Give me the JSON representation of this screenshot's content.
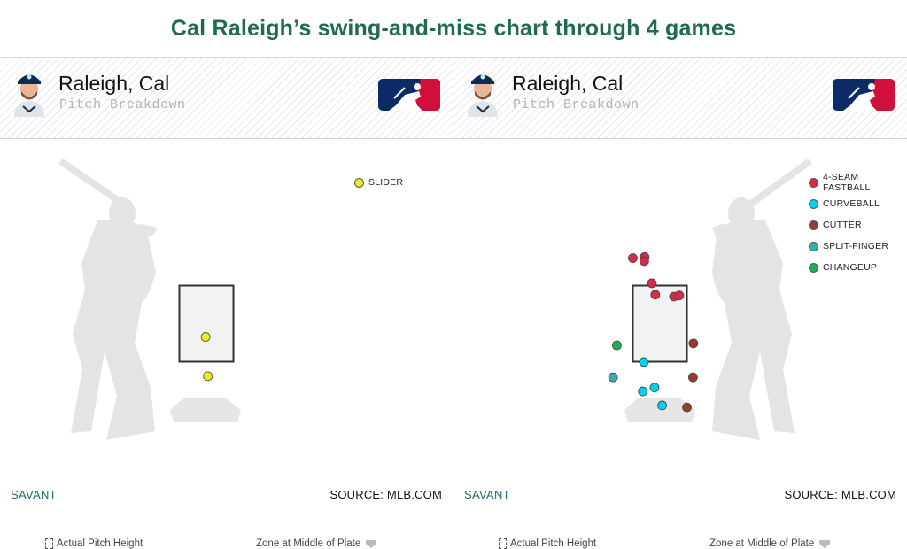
{
  "headline": "Cal Raleigh’s swing-and-miss chart through 4 games",
  "colors": {
    "headline": "#1f6b4e",
    "slider": "#ecec1e",
    "four_seam": "#d22d49",
    "curveball": "#00d1ed",
    "cutter": "#933f2c",
    "split_finger": "#3bacac",
    "changeup": "#1db053",
    "zone_fill": "#f2f2f2",
    "batter_silhouette": "#e4e4e4"
  },
  "panels": [
    {
      "player_name": "Raleigh, Cal",
      "subtitle": "Pitch Breakdown",
      "logo": "mlb-logo",
      "avatar": "player-headshot",
      "batter_side": "left-handed",
      "legend": [
        {
          "label": "SLIDER",
          "color": "#ecec1e"
        }
      ],
      "foot_left": "Actual Pitch Height",
      "foot_right": "Zone at Middle of Plate",
      "footer_left": "SAVANT",
      "footer_right": "SOURCE: MLB.COM"
    },
    {
      "player_name": "Raleigh, Cal",
      "subtitle": "Pitch Breakdown",
      "logo": "mlb-logo",
      "avatar": "player-headshot",
      "batter_side": "right-handed",
      "legend": [
        {
          "label": "4-SEAM FASTBALL",
          "color": "#d22d49"
        },
        {
          "label": "CURVEBALL",
          "color": "#00d1ed"
        },
        {
          "label": "CUTTER",
          "color": "#933f2c"
        },
        {
          "label": "SPLIT-FINGER",
          "color": "#3bacac"
        },
        {
          "label": "CHANGEUP",
          "color": "#1db053"
        }
      ],
      "foot_left": "Actual Pitch Height",
      "foot_right": "Zone at Middle of Plate",
      "footer_left": "SAVANT",
      "footer_right": "SOURCE: MLB.COM"
    }
  ],
  "chart_data": [
    {
      "type": "scatter",
      "title": "",
      "xlabel": "",
      "ylabel": "",
      "strike_zone": {
        "x": [
          -0.71,
          0.71
        ],
        "y": [
          1.5,
          3.5
        ]
      },
      "series": [
        {
          "name": "SLIDER",
          "color": "#ecec1e",
          "points": [
            [
              -0.02,
              2.15
            ],
            [
              0.04,
              1.12
            ]
          ]
        }
      ]
    },
    {
      "type": "scatter",
      "title": "",
      "xlabel": "",
      "ylabel": "",
      "strike_zone": {
        "x": [
          -0.71,
          0.71
        ],
        "y": [
          1.5,
          3.5
        ]
      },
      "series": [
        {
          "name": "4-SEAM FASTBALL",
          "color": "#d22d49",
          "points": [
            [
              -0.71,
              4.22
            ],
            [
              -0.4,
              4.25
            ],
            [
              -0.41,
              4.14
            ],
            [
              -0.21,
              3.56
            ],
            [
              -0.12,
              3.26
            ],
            [
              0.37,
              3.21
            ],
            [
              0.51,
              3.24
            ]
          ]
        },
        {
          "name": "CURVEBALL",
          "color": "#00d1ed",
          "points": [
            [
              -0.42,
              1.49
            ],
            [
              -0.45,
              0.72
            ],
            [
              -0.14,
              0.82
            ],
            [
              0.06,
              0.35
            ]
          ]
        },
        {
          "name": "CUTTER",
          "color": "#933f2c",
          "points": [
            [
              0.88,
              1.98
            ],
            [
              0.87,
              1.09
            ],
            [
              0.71,
              0.3
            ]
          ]
        },
        {
          "name": "SPLIT-FINGER",
          "color": "#3bacac",
          "points": [
            [
              -1.23,
              1.09
            ]
          ]
        },
        {
          "name": "CHANGEUP",
          "color": "#1db053",
          "points": [
            [
              -1.13,
              1.93
            ]
          ]
        }
      ]
    }
  ]
}
